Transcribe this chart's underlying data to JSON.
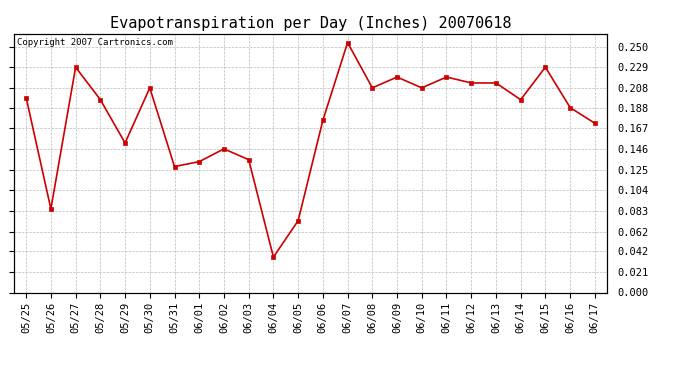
{
  "title": "Evapotranspiration per Day (Inches) 20070618",
  "copyright_text": "Copyright 2007 Cartronics.com",
  "x_labels": [
    "05/25",
    "05/26",
    "05/27",
    "05/28",
    "05/29",
    "05/30",
    "05/31",
    "06/01",
    "06/02",
    "06/03",
    "06/04",
    "06/05",
    "06/06",
    "06/07",
    "06/08",
    "06/09",
    "06/10",
    "06/11",
    "06/12",
    "06/13",
    "06/14",
    "06/15",
    "06/16",
    "06/17"
  ],
  "y_values": [
    0.198,
    0.085,
    0.229,
    0.196,
    0.152,
    0.208,
    0.128,
    0.133,
    0.146,
    0.135,
    0.036,
    0.073,
    0.175,
    0.254,
    0.208,
    0.219,
    0.208,
    0.219,
    0.213,
    0.213,
    0.196,
    0.229,
    0.188,
    0.172
  ],
  "line_color": "#cc0000",
  "marker": "s",
  "marker_size": 2.5,
  "line_width": 1.2,
  "background_color": "#ffffff",
  "plot_bg_color": "#ffffff",
  "grid_color": "#bbbbbb",
  "yticks": [
    0.0,
    0.021,
    0.042,
    0.062,
    0.083,
    0.104,
    0.125,
    0.146,
    0.167,
    0.188,
    0.208,
    0.229,
    0.25
  ],
  "ylim": [
    0.0,
    0.263
  ],
  "title_fontsize": 11,
  "tick_fontsize": 7.5,
  "copyright_fontsize": 6.5
}
